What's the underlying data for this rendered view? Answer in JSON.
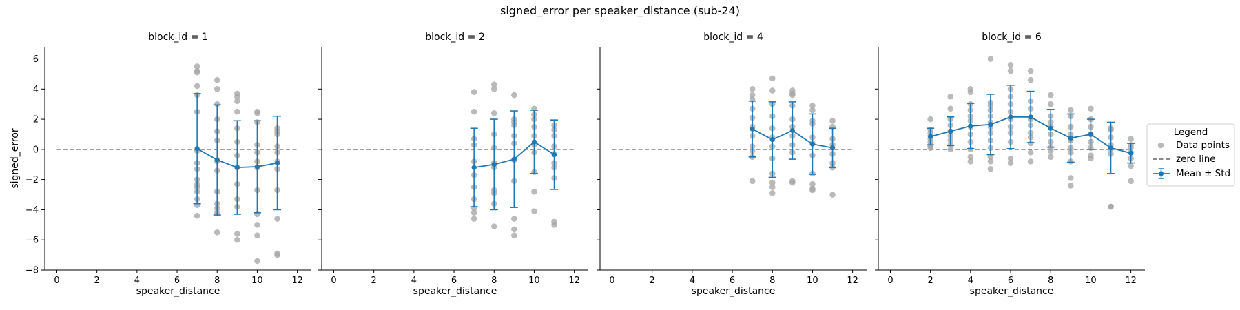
{
  "chart_data": {
    "type": "scatter",
    "title": "signed_error per speaker_distance (sub-24)",
    "xlabel": "speaker_distance",
    "ylabel": "signed_error",
    "xlim": [
      -0.6,
      12.7
    ],
    "ylim": [
      -8.0,
      6.8
    ],
    "xticks": [
      0,
      2,
      4,
      6,
      8,
      10,
      12
    ],
    "yticks": [
      -8,
      -6,
      -4,
      -2,
      0,
      2,
      4,
      6
    ],
    "zero_line": 0,
    "grid": false,
    "legend": {
      "title": "Legend",
      "placement": "right",
      "entries": [
        "Data points",
        "zero line",
        "Mean ± Std"
      ]
    },
    "colors": {
      "points": "#a6a6a6",
      "mean": "#1f77b4",
      "zero_line": "#666666"
    },
    "panels": [
      {
        "title": "block_id = 1",
        "mean": {
          "x": [
            7,
            8,
            9,
            10,
            11
          ],
          "y": [
            0.05,
            -0.7,
            -1.2,
            -1.15,
            -0.9
          ],
          "std": [
            3.65,
            3.65,
            3.1,
            3.05,
            3.1
          ]
        },
        "points": [
          {
            "x": 7,
            "y": [
              5.5,
              5.2,
              5.1,
              4.2,
              3.6,
              2.5,
              -0.1,
              -0.9,
              -1.3,
              -2.0,
              -2.3,
              -2.5,
              -2.8,
              -3.3,
              -3.7,
              -4.4
            ]
          },
          {
            "x": 8,
            "y": [
              4.6,
              4.0,
              3.0,
              2.0,
              1.2,
              0.6,
              -0.8,
              -1.4,
              -2.8,
              -3.6,
              -3.9,
              -4.2,
              -5.5
            ]
          },
          {
            "x": 9,
            "y": [
              3.7,
              3.5,
              3.2,
              2.5,
              1.4,
              0.5,
              -0.4,
              -1.2,
              -2.3,
              -3.3,
              -3.8,
              -5.6,
              -6.0
            ]
          },
          {
            "x": 10,
            "y": [
              2.5,
              2.4,
              1.8,
              0.3,
              -0.2,
              -0.8,
              -1.2,
              -2.7,
              -4.3,
              -5.0,
              -5.7,
              -7.4
            ]
          },
          {
            "x": 11,
            "y": [
              1.4,
              1.2,
              1.0,
              0.2,
              -0.2,
              -0.8,
              -1.3,
              -2.7,
              -4.6,
              -6.9,
              -7.0
            ]
          }
        ]
      },
      {
        "title": "block_id = 2",
        "mean": {
          "x": [
            7,
            8,
            9,
            10,
            11
          ],
          "y": [
            -1.2,
            -1.0,
            -0.65,
            0.5,
            -0.35
          ],
          "std": [
            2.6,
            3.0,
            3.2,
            2.1,
            2.3
          ]
        },
        "points": [
          {
            "x": 7,
            "y": [
              3.8,
              2.5,
              0.7,
              0.3,
              -0.8,
              -1.7,
              -2.5,
              -3.3,
              -3.9,
              -4.2,
              -4.6
            ]
          },
          {
            "x": 8,
            "y": [
              4.3,
              4.0,
              2.4,
              1.0,
              0.1,
              -0.9,
              -1.2,
              -2.7,
              -2.9,
              -3.6,
              -5.1
            ]
          },
          {
            "x": 9,
            "y": [
              3.6,
              2.0,
              1.8,
              1.6,
              0.9,
              0.4,
              -0.7,
              -2.1,
              -4.6,
              -5.3,
              -5.7
            ]
          },
          {
            "x": 10,
            "y": [
              2.7,
              2.3,
              2.0,
              1.5,
              0.9,
              0.3,
              -0.2,
              -1.5,
              -2.8,
              -4.1
            ]
          },
          {
            "x": 11,
            "y": [
              1.6,
              1.3,
              0.9,
              0.2,
              -0.3,
              -0.9,
              -1.2,
              -1.9,
              -4.8,
              -5.0
            ]
          }
        ]
      },
      {
        "title": "block_id = 4",
        "mean": {
          "x": [
            7,
            8,
            9,
            10,
            11
          ],
          "y": [
            1.35,
            0.65,
            1.25,
            0.35,
            0.1
          ],
          "std": [
            1.85,
            2.5,
            1.9,
            2.0,
            1.3
          ]
        },
        "points": [
          {
            "x": 7,
            "y": [
              4.0,
              3.6,
              3.3,
              2.7,
              2.1,
              1.5,
              0.9,
              0.2,
              -0.1,
              -0.5,
              -2.1
            ]
          },
          {
            "x": 8,
            "y": [
              4.7,
              3.9,
              3.0,
              2.2,
              1.4,
              0.8,
              0.2,
              -0.6,
              -1.6,
              -2.2,
              -2.5,
              -2.9
            ]
          },
          {
            "x": 9,
            "y": [
              3.9,
              3.7,
              3.6,
              2.9,
              2.0,
              1.5,
              0.9,
              0.3,
              -0.2,
              -2.1,
              -2.2
            ]
          },
          {
            "x": 10,
            "y": [
              2.9,
              2.6,
              1.9,
              1.7,
              0.8,
              0.4,
              -0.4,
              -1.6,
              -2.3,
              -2.6,
              -2.7
            ]
          },
          {
            "x": 11,
            "y": [
              1.9,
              1.5,
              0.7,
              0.3,
              -0.3,
              -0.9,
              -1.2,
              -3.0
            ]
          }
        ]
      },
      {
        "title": "block_id = 6",
        "mean": {
          "x": [
            2,
            3,
            4,
            5,
            6,
            7,
            8,
            9,
            10,
            11,
            12
          ],
          "y": [
            0.85,
            1.2,
            1.55,
            1.65,
            2.15,
            2.15,
            1.4,
            0.75,
            1.0,
            0.1,
            -0.25
          ],
          "std": [
            0.55,
            0.95,
            1.5,
            2.0,
            2.1,
            1.7,
            1.25,
            1.6,
            1.0,
            1.7,
            0.65
          ]
        },
        "points": [
          {
            "x": 2,
            "y": [
              2.0,
              1.3,
              1.1,
              0.9,
              0.7,
              0.5,
              0.3,
              0.2,
              0.1
            ]
          },
          {
            "x": 3,
            "y": [
              3.5,
              2.7,
              2.0,
              1.6,
              1.2,
              0.9,
              0.6,
              0.3,
              0.0
            ]
          },
          {
            "x": 4,
            "y": [
              4.0,
              3.8,
              3.0,
              2.6,
              2.2,
              1.9,
              1.5,
              1.0,
              0.5,
              0.0,
              -0.5,
              -0.8
            ]
          },
          {
            "x": 5,
            "y": [
              6.0,
              3.1,
              2.9,
              2.6,
              2.2,
              1.8,
              1.5,
              1.1,
              0.6,
              0.1,
              -0.5,
              -0.8,
              -1.3
            ]
          },
          {
            "x": 6,
            "y": [
              5.6,
              5.2,
              4.0,
              3.5,
              3.0,
              2.5,
              2.0,
              1.5,
              1.1,
              0.5,
              -0.6,
              -0.9
            ]
          },
          {
            "x": 7,
            "y": [
              5.2,
              4.6,
              3.2,
              2.7,
              2.0,
              1.6,
              1.1,
              0.8,
              0.4,
              -0.2,
              -0.8
            ]
          },
          {
            "x": 8,
            "y": [
              3.6,
              3.0,
              2.2,
              1.8,
              1.5,
              1.0,
              0.5,
              0.1,
              -0.1,
              -0.5
            ]
          },
          {
            "x": 9,
            "y": [
              2.6,
              2.2,
              1.5,
              1.0,
              0.6,
              0.1,
              -0.2,
              -0.8,
              -1.9,
              -2.4
            ]
          },
          {
            "x": 10,
            "y": [
              2.7,
              2.0,
              1.5,
              1.0,
              0.5,
              0.1,
              -0.4,
              -0.6
            ]
          },
          {
            "x": 11,
            "y": [
              1.4,
              1.3,
              0.8,
              0.3,
              0.0,
              -0.3,
              -3.8,
              -3.8
            ]
          },
          {
            "x": 12,
            "y": [
              0.7,
              0.3,
              0.1,
              -0.2,
              -0.6,
              -1.1,
              -2.1
            ]
          }
        ]
      }
    ]
  }
}
